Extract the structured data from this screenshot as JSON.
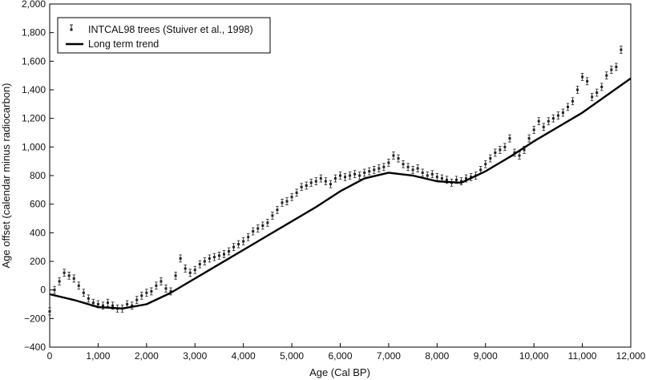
{
  "chart_data": {
    "type": "scatter",
    "title": "",
    "xlabel": "Age (Cal BP)",
    "ylabel": "Age offset (calendar minus radiocarbon)",
    "xlim": [
      0,
      12000
    ],
    "ylim": [
      -400,
      2000
    ],
    "x_ticks": [
      0,
      1000,
      2000,
      3000,
      4000,
      5000,
      6000,
      7000,
      8000,
      9000,
      10000,
      11000,
      12000
    ],
    "x_tick_labels": [
      "0",
      "1,000",
      "2,000",
      "3,000",
      "4,000",
      "5,000",
      "6,000",
      "7,000",
      "8,000",
      "9,000",
      "10,000",
      "11,000",
      "12,000"
    ],
    "y_ticks": [
      -400,
      -200,
      0,
      200,
      400,
      600,
      800,
      1000,
      1200,
      1400,
      1600,
      1800,
      2000
    ],
    "y_tick_labels": [
      "−400",
      "−200",
      "0",
      "200",
      "400",
      "600",
      "800",
      "1,000",
      "1,200",
      "1,400",
      "1,600",
      "1,800",
      "2,000"
    ],
    "grid": false,
    "legend_position": "top-left",
    "legend": [
      "INTCAL98 trees (Stuiver et al., 1998)",
      "Long term trend"
    ],
    "colors": {
      "points": "#222222",
      "trend": "#000000",
      "axis": "#000000"
    },
    "series": [
      {
        "name": "INTCAL98 trees (Stuiver et al., 1998)",
        "kind": "points-with-error-bars",
        "x": [
          0,
          100,
          200,
          300,
          400,
          500,
          600,
          700,
          800,
          900,
          1000,
          1100,
          1200,
          1300,
          1400,
          1500,
          1600,
          1700,
          1800,
          1900,
          2000,
          2100,
          2200,
          2300,
          2400,
          2500,
          2600,
          2700,
          2800,
          2900,
          3000,
          3100,
          3200,
          3300,
          3400,
          3500,
          3600,
          3700,
          3800,
          3900,
          4000,
          4100,
          4200,
          4300,
          4400,
          4500,
          4600,
          4700,
          4800,
          4900,
          5000,
          5100,
          5200,
          5300,
          5400,
          5500,
          5600,
          5700,
          5800,
          5900,
          6000,
          6100,
          6200,
          6300,
          6400,
          6500,
          6600,
          6700,
          6800,
          6900,
          7000,
          7100,
          7200,
          7300,
          7400,
          7500,
          7600,
          7700,
          7800,
          7900,
          8000,
          8100,
          8200,
          8300,
          8400,
          8500,
          8600,
          8700,
          8800,
          8900,
          9000,
          9100,
          9200,
          9300,
          9400,
          9500,
          9600,
          9700,
          9800,
          9900,
          10000,
          10100,
          10200,
          10300,
          10400,
          10500,
          10600,
          10700,
          10800,
          10900,
          11000,
          11100,
          11200,
          11300,
          11400,
          11500,
          11600,
          11700,
          11800
        ],
        "y": [
          -150,
          0,
          60,
          120,
          100,
          80,
          30,
          -20,
          -60,
          -90,
          -100,
          -110,
          -90,
          -110,
          -130,
          -130,
          -100,
          -110,
          -70,
          -40,
          -20,
          -10,
          30,
          60,
          10,
          -10,
          100,
          220,
          150,
          120,
          140,
          180,
          200,
          220,
          230,
          240,
          250,
          270,
          300,
          320,
          340,
          370,
          410,
          430,
          450,
          470,
          520,
          560,
          610,
          620,
          650,
          680,
          720,
          730,
          750,
          760,
          780,
          760,
          740,
          780,
          800,
          790,
          800,
          810,
          800,
          820,
          830,
          840,
          850,
          860,
          890,
          940,
          920,
          880,
          860,
          840,
          850,
          820,
          800,
          810,
          790,
          780,
          770,
          750,
          770,
          760,
          780,
          790,
          800,
          840,
          880,
          920,
          960,
          980,
          1000,
          1060,
          960,
          940,
          980,
          1060,
          1120,
          1180,
          1140,
          1180,
          1200,
          1220,
          1240,
          1280,
          1320,
          1400,
          1490,
          1460,
          1350,
          1380,
          1420,
          1500,
          1540,
          1560,
          1680
        ],
        "error": 25
      },
      {
        "name": "Long term trend",
        "kind": "line",
        "x": [
          0,
          500,
          1000,
          1500,
          2000,
          2500,
          3000,
          3500,
          4000,
          4500,
          5000,
          5500,
          6000,
          6500,
          7000,
          7500,
          8000,
          8500,
          9000,
          9500,
          10000,
          10500,
          11000,
          11500,
          12000
        ],
        "y": [
          -30,
          -70,
          -120,
          -130,
          -100,
          -20,
          80,
          180,
          280,
          380,
          480,
          580,
          690,
          780,
          820,
          800,
          760,
          750,
          830,
          930,
          1040,
          1140,
          1240,
          1360,
          1480
        ]
      }
    ]
  }
}
